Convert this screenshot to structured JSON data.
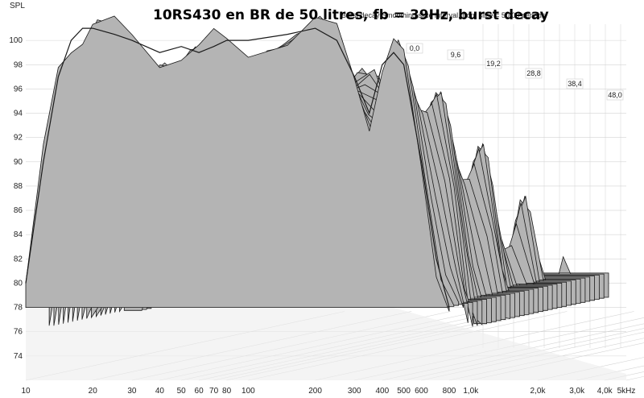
{
  "chart_data": {
    "type": "area",
    "title": "10RS430 en BR de 50 litres, fb = 39Hz, burst decay",
    "subtitle": "Burst decay    Smoothing    slice interval,  front slice = 50,00 periods",
    "xlabel": "",
    "ylabel": "SPL",
    "x_scale": "log",
    "xlim": [
      10,
      5000
    ],
    "ylim": [
      72,
      102
    ],
    "x_ticks": [
      "10",
      "20",
      "30",
      "40",
      "50",
      "60",
      "70",
      "80",
      "100",
      "200",
      "300",
      "400",
      "500",
      "600",
      "800",
      "1,0k",
      "2,0k",
      "3,0k",
      "4,0k",
      "5kHz"
    ],
    "y_ticks": [
      "74",
      "76",
      "78",
      "80",
      "82",
      "84",
      "86",
      "88",
      "90",
      "92",
      "94",
      "96",
      "98",
      "100"
    ],
    "slice_tags": [
      "0,0",
      "9,6",
      "19,2",
      "28,8",
      "38,4",
      "48,0"
    ],
    "grid": true,
    "colors": {
      "surface": "#b4b4b4",
      "line": "#1a1a1a",
      "floor": "#ececec",
      "grid": "#d4d4d4"
    },
    "front_slice": {
      "x": [
        10,
        12,
        14,
        16,
        18,
        20,
        25,
        30,
        40,
        50,
        60,
        70,
        80,
        100,
        150,
        200,
        250,
        300,
        350,
        400,
        450,
        500,
        600,
        700,
        800
      ],
      "y": [
        80,
        90,
        97,
        100,
        101,
        101,
        100.5,
        100,
        99,
        99.5,
        99,
        99.5,
        100,
        100,
        100.5,
        101,
        100,
        97,
        94,
        98,
        99,
        98,
        90,
        82,
        78
      ]
    }
  }
}
